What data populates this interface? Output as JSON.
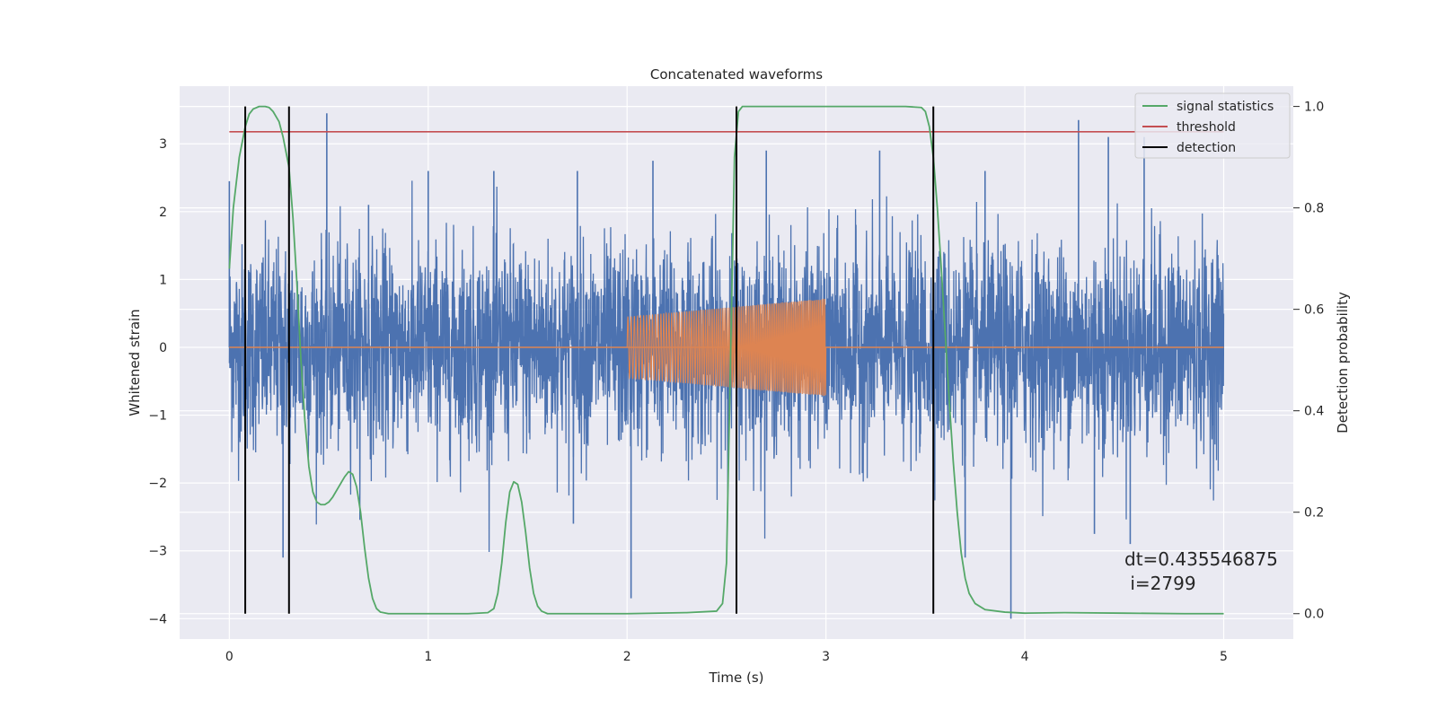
{
  "chart_data": {
    "type": "line",
    "title": "Concatenated waveforms",
    "xlabel": "Time (s)",
    "ylabel": "Whitened strain",
    "y2label": "Detection probability",
    "xlim": [
      -0.25,
      5.35
    ],
    "ylim": [
      -4.3,
      3.85
    ],
    "y2lim": [
      -0.05,
      1.04
    ],
    "grid": true,
    "legend_position": "top-right",
    "xticks": [
      0,
      1,
      2,
      3,
      4,
      5
    ],
    "xtick_labels": [
      "0",
      "1",
      "2",
      "3",
      "4",
      "5"
    ],
    "yticks": [
      3,
      2,
      1,
      0,
      -1,
      -2,
      -3,
      -4
    ],
    "ytick_labels": [
      "3",
      "2",
      "1",
      "0",
      "−1",
      "−2",
      "−3",
      "−4"
    ],
    "y2ticks": [
      1.0,
      0.8,
      0.6,
      0.4,
      0.2,
      0.0
    ],
    "y2tick_labels": [
      "1.0",
      "0.8",
      "0.6",
      "0.4",
      "0.2",
      "0.0"
    ],
    "series": [
      {
        "role": "strain",
        "axis": "left",
        "color": "#4c72b0",
        "x_range": [
          0,
          5
        ],
        "std": 0.75,
        "min": -4.0,
        "max": 3.45,
        "spike_points": [
          [
            0.0,
            2.45
          ],
          [
            0.3,
            2.3
          ],
          [
            0.49,
            3.45
          ],
          [
            0.7,
            2.1
          ],
          [
            1.0,
            2.6
          ],
          [
            1.33,
            2.6
          ],
          [
            1.75,
            2.6
          ],
          [
            2.13,
            2.75
          ],
          [
            2.7,
            2.9
          ],
          [
            3.27,
            2.9
          ],
          [
            3.8,
            2.6
          ],
          [
            4.27,
            3.35
          ],
          [
            4.42,
            3.1
          ],
          [
            4.6,
            3.1
          ],
          [
            0.27,
            -3.1
          ],
          [
            1.73,
            -2.6
          ],
          [
            2.02,
            -3.7
          ],
          [
            3.7,
            -3.1
          ],
          [
            3.93,
            -4.0
          ],
          [
            4.53,
            -2.9
          ],
          [
            4.35,
            -2.75
          ]
        ]
      },
      {
        "role": "injected-signal",
        "axis": "left",
        "color": "#dd8452",
        "x_range": [
          2.0,
          3.0
        ],
        "baseline": 0.0,
        "amplitude_start": 0.45,
        "amplitude_end": 0.72,
        "cycles": 60
      },
      {
        "name": "signal statistics",
        "axis": "right",
        "color": "#55a868",
        "x": [
          0.0,
          0.02,
          0.05,
          0.08,
          0.1,
          0.12,
          0.15,
          0.18,
          0.2,
          0.22,
          0.25,
          0.27,
          0.3,
          0.32,
          0.34,
          0.36,
          0.38,
          0.4,
          0.42,
          0.44,
          0.46,
          0.48,
          0.5,
          0.52,
          0.55,
          0.58,
          0.6,
          0.62,
          0.64,
          0.66,
          0.68,
          0.7,
          0.72,
          0.74,
          0.76,
          0.8,
          1.0,
          1.2,
          1.3,
          1.33,
          1.35,
          1.37,
          1.39,
          1.41,
          1.43,
          1.45,
          1.47,
          1.49,
          1.51,
          1.53,
          1.55,
          1.57,
          1.6,
          1.7,
          2.0,
          2.3,
          2.45,
          2.48,
          2.5,
          2.52,
          2.54,
          2.56,
          2.58,
          2.6,
          2.65,
          2.8,
          3.0,
          3.2,
          3.4,
          3.48,
          3.5,
          3.52,
          3.54,
          3.56,
          3.58,
          3.6,
          3.62,
          3.64,
          3.66,
          3.68,
          3.7,
          3.72,
          3.75,
          3.8,
          3.9,
          4.0,
          4.2,
          4.5,
          4.8,
          5.0
        ],
        "values": [
          0.68,
          0.8,
          0.9,
          0.96,
          0.985,
          0.995,
          1.0,
          1.0,
          0.998,
          0.99,
          0.97,
          0.94,
          0.88,
          0.78,
          0.65,
          0.5,
          0.38,
          0.29,
          0.24,
          0.22,
          0.215,
          0.215,
          0.22,
          0.23,
          0.25,
          0.27,
          0.28,
          0.275,
          0.25,
          0.2,
          0.13,
          0.07,
          0.03,
          0.01,
          0.003,
          0.0,
          0.0,
          0.0,
          0.002,
          0.01,
          0.04,
          0.1,
          0.18,
          0.24,
          0.26,
          0.255,
          0.22,
          0.16,
          0.09,
          0.04,
          0.015,
          0.005,
          0.0,
          0.0,
          0.0,
          0.002,
          0.005,
          0.02,
          0.1,
          0.5,
          0.9,
          0.99,
          1.0,
          1.0,
          1.0,
          1.0,
          1.0,
          1.0,
          1.0,
          0.998,
          0.99,
          0.96,
          0.9,
          0.8,
          0.68,
          0.55,
          0.42,
          0.3,
          0.2,
          0.12,
          0.07,
          0.04,
          0.02,
          0.008,
          0.003,
          0.001,
          0.002,
          0.001,
          0.0,
          0.0
        ]
      },
      {
        "name": "threshold",
        "axis": "right",
        "color": "#c44e52",
        "x": [
          0,
          5
        ],
        "values": [
          0.95,
          0.95
        ]
      },
      {
        "name": "detection",
        "axis": "right",
        "color": "#000000",
        "type": "vlines",
        "x": [
          0.08,
          0.3,
          2.55,
          3.54
        ],
        "range": [
          0.0,
          1.0
        ]
      }
    ],
    "legend": [
      "signal statistics",
      "threshold",
      "detection"
    ],
    "annotations": [
      "dt=0.435546875",
      " i=2799"
    ]
  }
}
